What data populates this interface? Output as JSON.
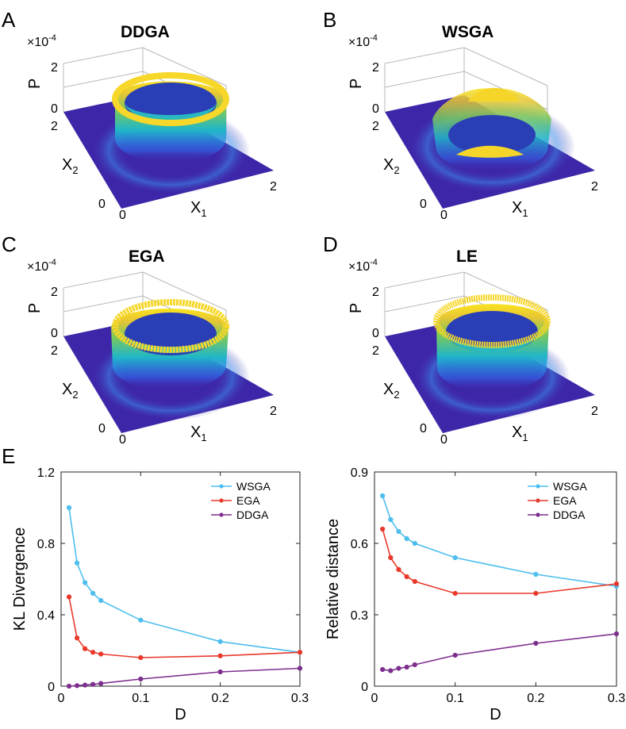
{
  "surface_panels": [
    {
      "letter": "A",
      "title": "DDGA",
      "scale": "×10",
      "exp": "-4",
      "zlabel": "P",
      "z_ticks": [
        "0",
        "2"
      ],
      "x2_ticks": [
        "0",
        "2"
      ],
      "x1_ticks": [
        "0",
        "2"
      ],
      "x2_label": "X",
      "x2_sub": "2",
      "x1_label": "X",
      "x1_sub": "1"
    },
    {
      "letter": "B",
      "title": "WSGA",
      "scale": "×10",
      "exp": "-4",
      "zlabel": "P",
      "z_ticks": [
        "0",
        "2"
      ],
      "x2_ticks": [
        "0",
        "2"
      ],
      "x1_ticks": [
        "0",
        "2"
      ],
      "x2_label": "X",
      "x2_sub": "2",
      "x1_label": "X",
      "x1_sub": "1"
    },
    {
      "letter": "C",
      "title": "EGA",
      "scale": "×10",
      "exp": "-4",
      "zlabel": "P",
      "z_ticks": [
        "0",
        "2"
      ],
      "x2_ticks": [
        "0",
        "2"
      ],
      "x1_ticks": [
        "0",
        "2"
      ],
      "x2_label": "X",
      "x2_sub": "2",
      "x1_label": "X",
      "x1_sub": "1"
    },
    {
      "letter": "D",
      "title": "LE",
      "scale": "×10",
      "exp": "-4",
      "zlabel": "P",
      "z_ticks": [
        "0",
        "2"
      ],
      "x2_ticks": [
        "0",
        "2"
      ],
      "x1_ticks": [
        "0",
        "2"
      ],
      "x2_label": "X",
      "x2_sub": "2",
      "x1_label": "X",
      "x1_sub": "1"
    }
  ],
  "panel_e_letter": "E",
  "colors": {
    "WSGA": "#4dbeee",
    "EGA": "#e8392b",
    "DDGA": "#7e2f8e",
    "floor": "#3e26a8"
  },
  "chart_data": [
    {
      "type": "line",
      "xlabel": "D",
      "ylabel": "KL Divergence",
      "xlim": [
        0,
        0.3
      ],
      "ylim": [
        0,
        1.2
      ],
      "xticks": [
        0,
        0.1,
        0.2,
        0.3
      ],
      "xtick_labels": [
        "0",
        "0.1",
        "0.2",
        "0.3"
      ],
      "yticks": [
        0,
        0.4,
        0.8,
        1.2
      ],
      "ytick_labels": [
        "0",
        "0.4",
        "0.8",
        "1.2"
      ],
      "x": [
        0.01,
        0.02,
        0.03,
        0.04,
        0.05,
        0.1,
        0.2,
        0.3
      ],
      "legend_position": "top-right",
      "series": [
        {
          "name": "WSGA",
          "color": "#4dbeee",
          "values": [
            1.0,
            0.69,
            0.58,
            0.52,
            0.48,
            0.37,
            0.25,
            0.19
          ]
        },
        {
          "name": "EGA",
          "color": "#e8392b",
          "values": [
            0.5,
            0.27,
            0.21,
            0.19,
            0.18,
            0.16,
            0.17,
            0.19
          ]
        },
        {
          "name": "DDGA",
          "color": "#7e2f8e",
          "values": [
            0.0,
            0.003,
            0.006,
            0.01,
            0.015,
            0.04,
            0.08,
            0.1
          ]
        }
      ]
    },
    {
      "type": "line",
      "xlabel": "D",
      "ylabel": "Relative distance",
      "xlim": [
        0,
        0.3
      ],
      "ylim": [
        0,
        0.9
      ],
      "xticks": [
        0,
        0.1,
        0.2,
        0.3
      ],
      "xtick_labels": [
        "0",
        "0.1",
        "0.2",
        "0.3"
      ],
      "yticks": [
        0,
        0.3,
        0.6,
        0.9
      ],
      "ytick_labels": [
        "0",
        "0.3",
        "0.6",
        "0.9"
      ],
      "x": [
        0.01,
        0.02,
        0.03,
        0.04,
        0.05,
        0.1,
        0.2,
        0.3
      ],
      "legend_position": "top-right",
      "series": [
        {
          "name": "WSGA",
          "color": "#4dbeee",
          "values": [
            0.8,
            0.7,
            0.65,
            0.62,
            0.6,
            0.54,
            0.47,
            0.42
          ]
        },
        {
          "name": "EGA",
          "color": "#e8392b",
          "values": [
            0.66,
            0.54,
            0.49,
            0.46,
            0.44,
            0.39,
            0.39,
            0.43
          ]
        },
        {
          "name": "DDGA",
          "color": "#7e2f8e",
          "values": [
            0.07,
            0.065,
            0.075,
            0.08,
            0.09,
            0.13,
            0.18,
            0.22
          ]
        }
      ]
    }
  ]
}
